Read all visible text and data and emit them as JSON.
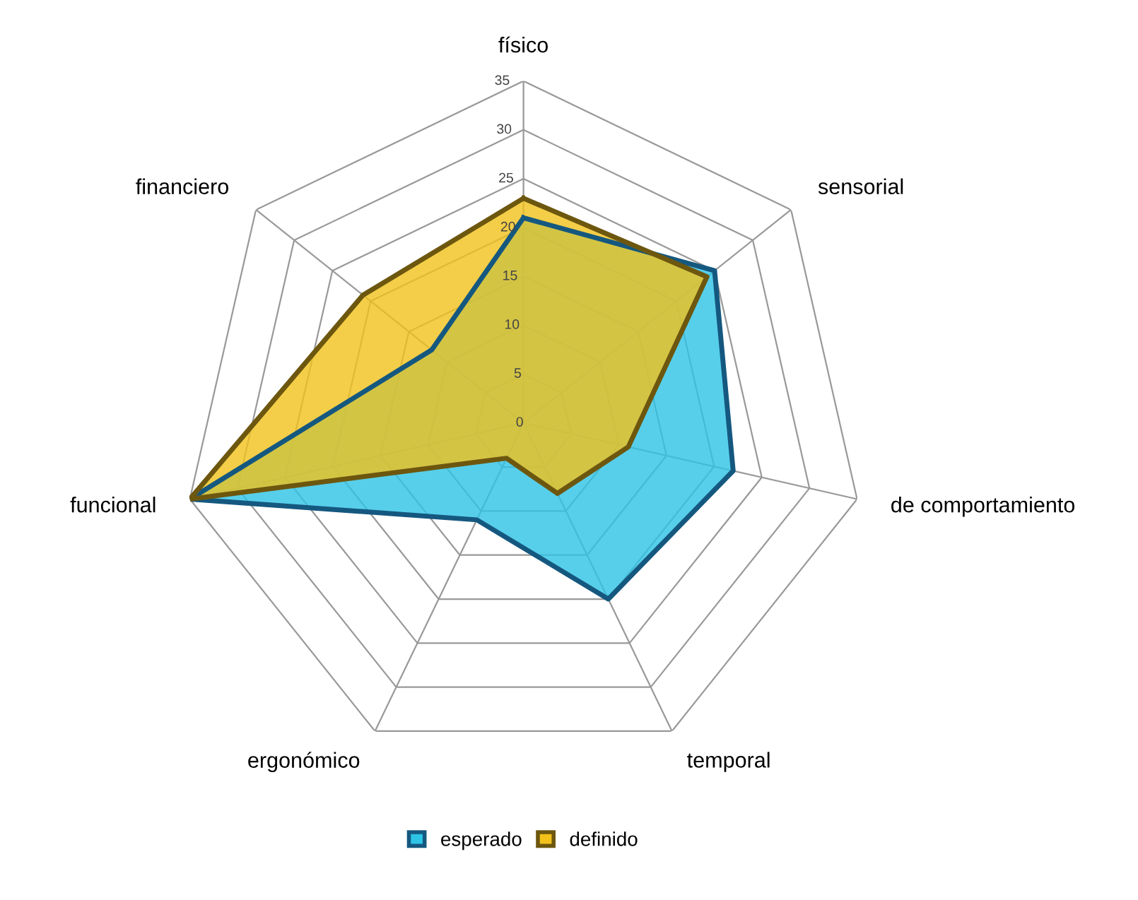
{
  "chart_data": {
    "type": "radar",
    "categories": [
      "físico",
      "sensorial",
      "de comportamiento",
      "temporal",
      "ergonómico",
      "funcional",
      "financiero"
    ],
    "series": [
      {
        "name": "esperado",
        "color": "#2ec4e6",
        "values": [
          21,
          25,
          22,
          20,
          11,
          35,
          12
        ]
      },
      {
        "name": "definido",
        "color": "#f2c21b",
        "values": [
          23,
          24,
          11,
          8,
          4,
          35,
          21
        ]
      }
    ],
    "ylim": [
      0,
      35
    ],
    "yticks": [
      0,
      5,
      10,
      15,
      20,
      25,
      30,
      35
    ],
    "grid": true,
    "legend": "bottom"
  }
}
